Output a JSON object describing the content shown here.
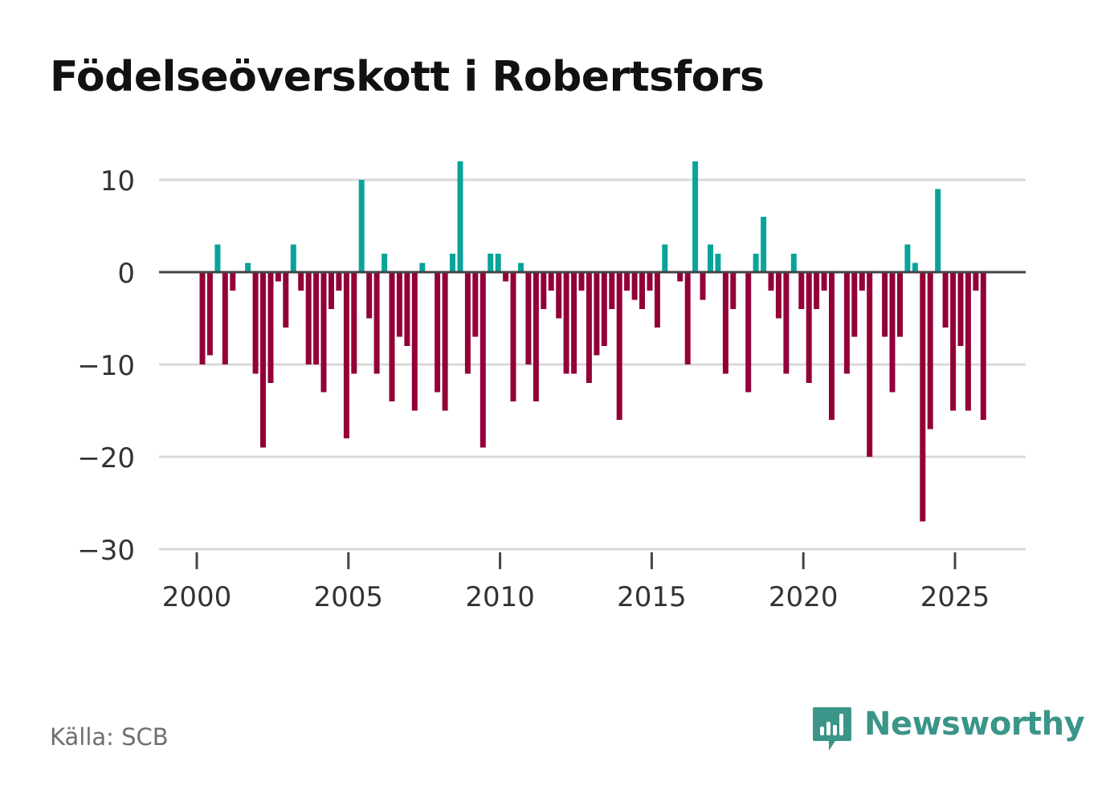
{
  "title": "Födelseöverskott i Robertsfors",
  "source": "Källa: SCB",
  "brand": {
    "name": "Newsworthy",
    "icon": "newsworthy-logo-icon",
    "color": "#3b9589"
  },
  "colors": {
    "positive": "#0aa39a",
    "negative": "#930039",
    "grid": "#d9d9d9",
    "zero_line": "#444444",
    "axis_text": "#333333"
  },
  "chart_data": {
    "type": "bar",
    "title": "Födelseöverskott i Robertsfors",
    "xlabel": "",
    "ylabel": "",
    "ylim": [
      -30,
      12
    ],
    "xlim": [
      1999.8,
      2027.3
    ],
    "grid": true,
    "legend": "none",
    "yticks": [
      10,
      0,
      -10,
      -20,
      -30
    ],
    "ytick_labels": [
      "10",
      "0",
      "−10",
      "−20",
      "−30"
    ],
    "xticks": [
      2000,
      2005,
      2010,
      2015,
      2020,
      2025
    ],
    "xtick_labels": [
      "2000",
      "2005",
      "2010",
      "2015",
      "2020",
      "2025"
    ],
    "frequency": "quarterly",
    "start": "2000 Q1",
    "values": [
      -10,
      -9,
      3,
      -10,
      -2,
      0,
      1,
      -11,
      -19,
      -12,
      -1,
      -6,
      3,
      -2,
      -10,
      -10,
      -13,
      -4,
      -2,
      -18,
      -11,
      10,
      -5,
      -11,
      2,
      -14,
      -7,
      -8,
      -15,
      1,
      0,
      -13,
      -15,
      2,
      12,
      -11,
      -7,
      -19,
      2,
      2,
      -1,
      -14,
      1,
      -10,
      -14,
      -4,
      -2,
      -5,
      -11,
      -11,
      -2,
      -12,
      -9,
      -8,
      -4,
      -16,
      -2,
      -3,
      -4,
      -2,
      -6,
      3,
      0,
      -1,
      -10,
      12,
      -3,
      3,
      2,
      -11,
      -4,
      0,
      -13,
      2,
      6,
      -2,
      -5,
      -11,
      2,
      -4,
      -12,
      -4,
      -2,
      -16,
      0,
      -11,
      -7,
      -2,
      -20,
      0,
      -7,
      -13,
      -7,
      3,
      1,
      -27,
      -17,
      9,
      -6,
      -15,
      -8,
      -15,
      -2,
      -16
    ]
  }
}
